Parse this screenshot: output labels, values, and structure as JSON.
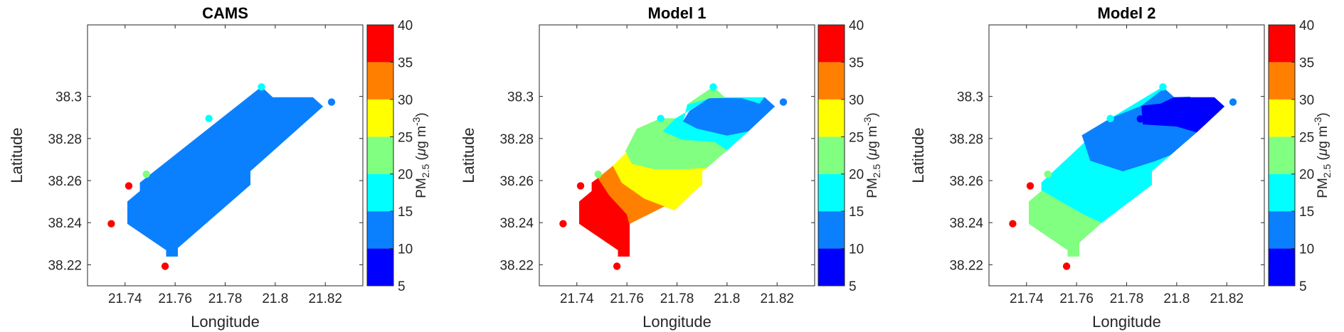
{
  "chart_data": {
    "type": "contour-map",
    "panels": [
      {
        "title": "CAMS",
        "xlabel": "Longitude",
        "ylabel": "Latitude",
        "xlim": [
          21.725,
          21.835
        ],
        "ylim": [
          38.21,
          38.334
        ],
        "xticks": [
          "21.74",
          "21.76",
          "21.78",
          "21.8",
          "21.82"
        ],
        "xtick_values": [
          21.74,
          21.76,
          21.78,
          21.8,
          21.82
        ],
        "yticks": [
          "38.22",
          "38.24",
          "38.26",
          "38.28",
          "38.3"
        ],
        "ytick_values": [
          38.22,
          38.24,
          38.26,
          38.28,
          38.3
        ],
        "fill_regions": [
          {
            "bin": [
              10,
              15
            ],
            "color": "#0a80ff",
            "polygon": [
              [
                21.741,
                38.25
              ],
              [
                21.746,
                38.255
              ],
              [
                21.746,
                38.259
              ],
              [
                21.7945,
                38.3045
              ],
              [
                21.799,
                38.2995
              ],
              [
                21.815,
                38.2995
              ],
              [
                21.819,
                38.2952
              ],
              [
                21.79,
                38.2645
              ],
              [
                21.79,
                38.258
              ],
              [
                21.761,
                38.228
              ],
              [
                21.761,
                38.224
              ],
              [
                21.7565,
                38.224
              ],
              [
                21.7565,
                38.227
              ],
              [
                21.741,
                38.2395
              ]
            ]
          }
        ],
        "stations": [
          {
            "lon": 21.7345,
            "lat": 38.2395,
            "pm25": 38
          },
          {
            "lon": 21.7415,
            "lat": 38.2575,
            "pm25": 38
          },
          {
            "lon": 21.7485,
            "lat": 38.263,
            "pm25": 23
          },
          {
            "lon": 21.756,
            "lat": 38.2193,
            "pm25": 38
          },
          {
            "lon": 21.7735,
            "lat": 38.2895,
            "pm25": 18
          },
          {
            "lon": 21.7945,
            "lat": 38.3045,
            "pm25": 18
          },
          {
            "lon": 21.8225,
            "lat": 38.2973,
            "pm25": 13
          }
        ]
      },
      {
        "title": "Model 1",
        "xlabel": "Longitude",
        "ylabel": "Latitude",
        "xlim": [
          21.725,
          21.835
        ],
        "ylim": [
          38.21,
          38.334
        ],
        "xticks": [
          "21.74",
          "21.76",
          "21.78",
          "21.8",
          "21.82"
        ],
        "xtick_values": [
          21.74,
          21.76,
          21.78,
          21.8,
          21.82
        ],
        "yticks": [
          "38.22",
          "38.24",
          "38.26",
          "38.28",
          "38.3"
        ],
        "ytick_values": [
          38.22,
          38.24,
          38.26,
          38.28,
          38.3
        ],
        "fill_regions": [
          {
            "bin": [
              35,
              40
            ],
            "color": "#ff0000",
            "polygon": [
              [
                21.741,
                38.25
              ],
              [
                21.746,
                38.255
              ],
              [
                21.746,
                38.259
              ],
              [
                21.7485,
                38.2612
              ],
              [
                21.753,
                38.253
              ],
              [
                21.76,
                38.244
              ],
              [
                21.761,
                38.2395
              ],
              [
                21.761,
                38.224
              ],
              [
                21.7565,
                38.224
              ],
              [
                21.7565,
                38.227
              ],
              [
                21.741,
                38.2395
              ]
            ]
          },
          {
            "bin": [
              30,
              35
            ],
            "color": "#ff8000",
            "polygon": [
              [
                21.7485,
                38.2612
              ],
              [
                21.753,
                38.253
              ],
              [
                21.76,
                38.244
              ],
              [
                21.761,
                38.2395
              ],
              [
                21.7745,
                38.2475
              ],
              [
                21.786,
                38.254
              ],
              [
                21.779,
                38.246
              ],
              [
                21.767,
                38.2515
              ],
              [
                21.758,
                38.259
              ],
              [
                21.7545,
                38.267
              ]
            ]
          },
          {
            "bin": [
              25,
              30
            ],
            "color": "#ffff00",
            "polygon": [
              [
                21.7545,
                38.267
              ],
              [
                21.758,
                38.259
              ],
              [
                21.767,
                38.2515
              ],
              [
                21.779,
                38.246
              ],
              [
                21.786,
                38.254
              ],
              [
                21.79,
                38.258
              ],
              [
                21.79,
                38.2645
              ],
              [
                21.792,
                38.2662
              ],
              [
                21.783,
                38.2655
              ],
              [
                21.771,
                38.2655
              ],
              [
                21.762,
                38.268
              ],
              [
                21.7595,
                38.274
              ],
              [
                21.764,
                38.2845
              ],
              [
                21.7735,
                38.2895
              ]
            ]
          },
          {
            "bin": [
              20,
              25
            ],
            "color": "#80ff80",
            "polygon": [
              [
                21.764,
                38.2845
              ],
              [
                21.7595,
                38.274
              ],
              [
                21.762,
                38.268
              ],
              [
                21.771,
                38.2655
              ],
              [
                21.783,
                38.2655
              ],
              [
                21.792,
                38.2662
              ],
              [
                21.8,
                38.2745
              ],
              [
                21.795,
                38.2785
              ],
              [
                21.782,
                38.2795
              ],
              [
                21.7745,
                38.2835
              ],
              [
                21.7795,
                38.2895
              ],
              [
                21.7735,
                38.2895
              ]
            ]
          },
          {
            "bin": [
              15,
              20
            ],
            "color": "#00ffff",
            "polygon": [
              [
                21.7795,
                38.2895
              ],
              [
                21.7745,
                38.2835
              ],
              [
                21.782,
                38.2795
              ],
              [
                21.795,
                38.2785
              ],
              [
                21.8,
                38.2745
              ],
              [
                21.8085,
                38.2835
              ],
              [
                21.8,
                38.2815
              ],
              [
                21.788,
                38.2848
              ],
              [
                21.7825,
                38.2882
              ],
              [
                21.7842,
                38.2962
              ],
              [
                21.7945,
                38.3045
              ],
              [
                21.799,
                38.2995
              ],
              [
                21.815,
                38.2995
              ],
              [
                21.813,
                38.2965
              ],
              [
                21.806,
                38.299
              ],
              [
                21.793,
                38.2992
              ]
            ]
          },
          {
            "bin": [
              10,
              15
            ],
            "color": "#0a80ff",
            "polygon": [
              [
                21.7825,
                38.2882
              ],
              [
                21.788,
                38.2848
              ],
              [
                21.8,
                38.2815
              ],
              [
                21.8085,
                38.2835
              ],
              [
                21.819,
                38.2952
              ],
              [
                21.815,
                38.2995
              ],
              [
                21.813,
                38.2965
              ],
              [
                21.806,
                38.299
              ],
              [
                21.793,
                38.2992
              ],
              [
                21.785,
                38.293
              ]
            ]
          },
          {
            "bin": [
              20,
              25
            ],
            "color": "#80ff80",
            "polygon": [
              [
                21.7842,
                38.2962
              ],
              [
                21.7945,
                38.3045
              ],
              [
                21.799,
                38.2995
              ],
              [
                21.793,
                38.2992
              ]
            ]
          }
        ],
        "stations": [
          {
            "lon": 21.7345,
            "lat": 38.2395,
            "pm25": 38
          },
          {
            "lon": 21.7415,
            "lat": 38.2575,
            "pm25": 38
          },
          {
            "lon": 21.7485,
            "lat": 38.263,
            "pm25": 23
          },
          {
            "lon": 21.756,
            "lat": 38.2193,
            "pm25": 38
          },
          {
            "lon": 21.7735,
            "lat": 38.2895,
            "pm25": 18
          },
          {
            "lon": 21.7945,
            "lat": 38.3045,
            "pm25": 18
          },
          {
            "lon": 21.8225,
            "lat": 38.2973,
            "pm25": 13
          }
        ]
      },
      {
        "title": "Model 2",
        "xlabel": "Longitude",
        "ylabel": "Latitude",
        "xlim": [
          21.725,
          21.835
        ],
        "ylim": [
          38.21,
          38.334
        ],
        "xticks": [
          "21.74",
          "21.76",
          "21.78",
          "21.8",
          "21.82"
        ],
        "xtick_values": [
          21.74,
          21.76,
          21.78,
          21.8,
          21.82
        ],
        "yticks": [
          "38.22",
          "38.24",
          "38.26",
          "38.28",
          "38.3"
        ],
        "ytick_values": [
          38.22,
          38.24,
          38.26,
          38.28,
          38.3
        ],
        "fill_regions": [
          {
            "bin": [
              20,
              25
            ],
            "color": "#80ff80",
            "polygon": [
              [
                21.741,
                38.25
              ],
              [
                21.746,
                38.255
              ],
              [
                21.746,
                38.2555
              ],
              [
                21.762,
                38.2445
              ],
              [
                21.77,
                38.24
              ],
              [
                21.761,
                38.2305
              ],
              [
                21.761,
                38.224
              ],
              [
                21.7565,
                38.224
              ],
              [
                21.7565,
                38.227
              ],
              [
                21.741,
                38.2395
              ]
            ]
          },
          {
            "bin": [
              15,
              20
            ],
            "color": "#00ffff",
            "polygon": [
              [
                21.746,
                38.2555
              ],
              [
                21.762,
                38.2445
              ],
              [
                21.77,
                38.24
              ],
              [
                21.79,
                38.258
              ],
              [
                21.79,
                38.2645
              ],
              [
                21.7975,
                38.2722
              ],
              [
                21.791,
                38.2692
              ],
              [
                21.7785,
                38.2645
              ],
              [
                21.7655,
                38.2695
              ],
              [
                21.7622,
                38.2815
              ],
              [
                21.7735,
                38.2895
              ],
              [
                21.7945,
                38.3045
              ],
              [
                21.795,
                38.3038
              ],
              [
                21.786,
                38.2955
              ],
              [
                21.7735,
                38.2895
              ],
              [
                21.746,
                38.259
              ]
            ]
          },
          {
            "bin": [
              10,
              15
            ],
            "color": "#0a80ff",
            "polygon": [
              [
                21.7735,
                38.2895
              ],
              [
                21.7622,
                38.2815
              ],
              [
                21.7655,
                38.2695
              ],
              [
                21.7785,
                38.2645
              ],
              [
                21.791,
                38.2692
              ],
              [
                21.7975,
                38.2722
              ],
              [
                21.808,
                38.283
              ],
              [
                21.8,
                38.2858
              ],
              [
                21.7865,
                38.2868
              ],
              [
                21.786,
                38.2955
              ],
              [
                21.795,
                38.3038
              ],
              [
                21.799,
                38.2995
              ],
              [
                21.8055,
                38.2998
              ],
              [
                21.7935,
                38.2965
              ],
              [
                21.786,
                38.2955
              ]
            ]
          },
          {
            "bin": [
              5,
              10
            ],
            "color": "#0000ff",
            "polygon": [
              [
                21.7865,
                38.2868
              ],
              [
                21.8,
                38.2858
              ],
              [
                21.808,
                38.283
              ],
              [
                21.819,
                38.2952
              ],
              [
                21.815,
                38.2995
              ],
              [
                21.799,
                38.2995
              ],
              [
                21.7935,
                38.2965
              ],
              [
                21.786,
                38.2955
              ]
            ]
          }
        ],
        "stations": [
          {
            "lon": 21.7345,
            "lat": 38.2395,
            "pm25": 38
          },
          {
            "lon": 21.7415,
            "lat": 38.2575,
            "pm25": 38
          },
          {
            "lon": 21.7485,
            "lat": 38.263,
            "pm25": 23
          },
          {
            "lon": 21.756,
            "lat": 38.2193,
            "pm25": 38
          },
          {
            "lon": 21.7735,
            "lat": 38.2895,
            "pm25": 18
          },
          {
            "lon": 21.7855,
            "lat": 38.2893,
            "pm25": 8
          },
          {
            "lon": 21.7945,
            "lat": 38.3045,
            "pm25": 18
          },
          {
            "lon": 21.8225,
            "lat": 38.2973,
            "pm25": 13
          }
        ]
      }
    ],
    "colorbar": {
      "label_main": "PM",
      "label_sub": "2.5",
      "label_unit_pre": " (",
      "label_mu": "μ",
      "label_unit_mid": "g m",
      "label_sup": "-3",
      "label_close": ")",
      "range": [
        5,
        40
      ],
      "ticks": [
        "5",
        "10",
        "15",
        "20",
        "25",
        "30",
        "35",
        "40"
      ],
      "tick_values": [
        5,
        10,
        15,
        20,
        25,
        30,
        35,
        40
      ],
      "colors": [
        "#0000ff",
        "#0a80ff",
        "#00ffff",
        "#80ff80",
        "#ffff00",
        "#ff8000",
        "#ff0000"
      ]
    }
  }
}
